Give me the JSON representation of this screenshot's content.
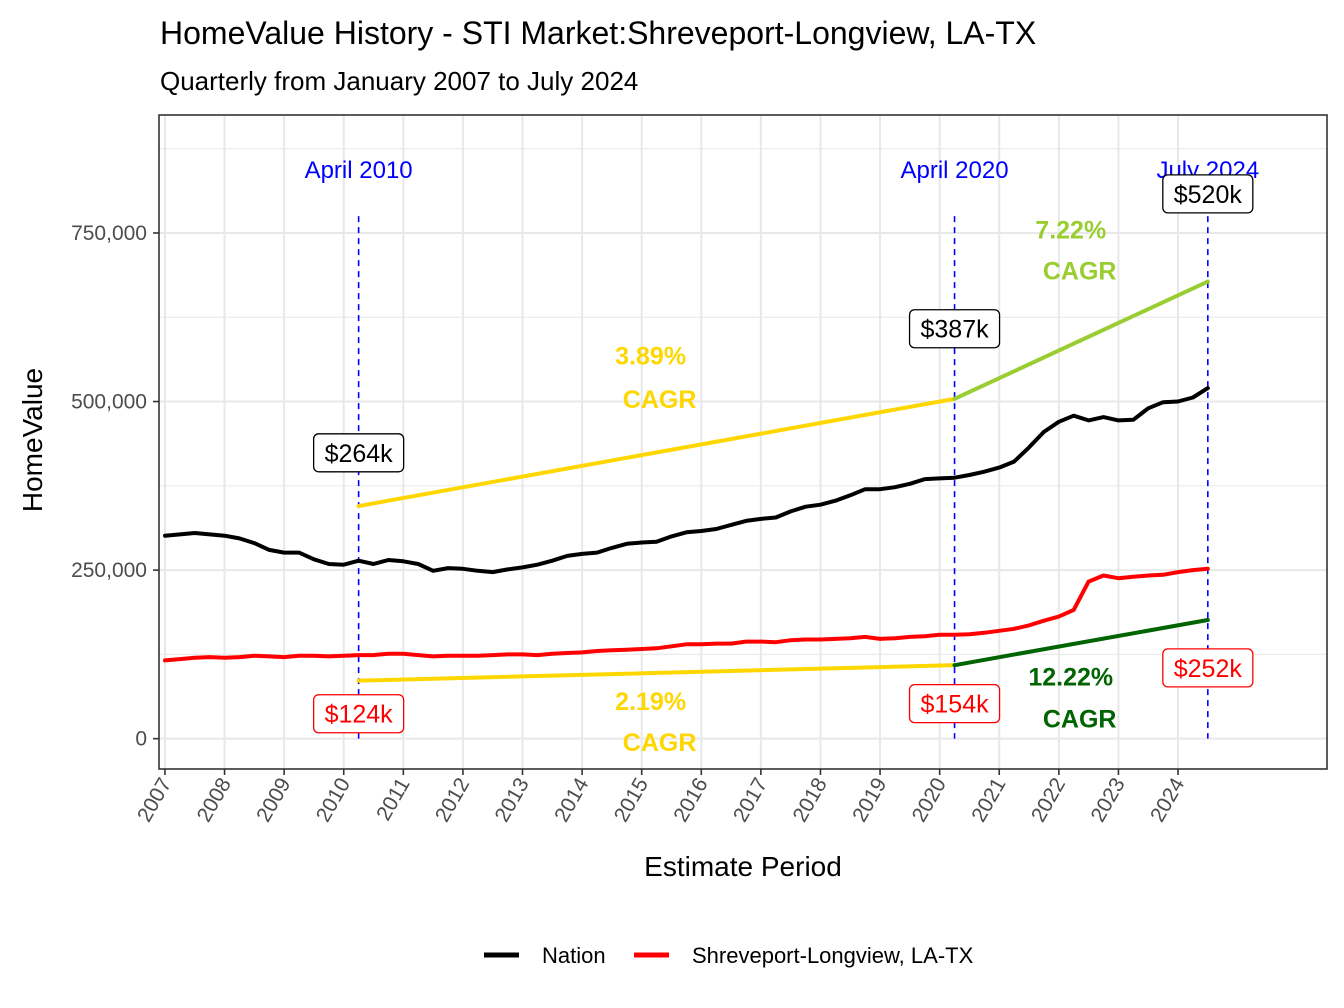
{
  "chart_data": {
    "type": "line",
    "title": "HomeValue History - STI Market:Shreveport-Longview, LA-TX",
    "subtitle": "Quarterly from January 2007 to July 2024",
    "xlabel": "Estimate Period",
    "ylabel": "HomeValue",
    "xlim": [
      2006.9,
      2026.5
    ],
    "ylim": [
      -45000,
      925000
    ],
    "x_ticks": [
      2007,
      2008,
      2009,
      2010,
      2011,
      2012,
      2013,
      2014,
      2015,
      2016,
      2017,
      2018,
      2019,
      2020,
      2021,
      2022,
      2023,
      2024
    ],
    "x_tick_labels": [
      "2007",
      "2008",
      "2009",
      "2010",
      "2011",
      "2012",
      "2013",
      "2014",
      "2015",
      "2016",
      "2017",
      "2018",
      "2019",
      "2020",
      "2021",
      "2022",
      "2023",
      "2024"
    ],
    "y_ticks": [
      0,
      250000,
      500000,
      750000
    ],
    "y_tick_labels": [
      "0",
      "250,000",
      "500,000",
      "750,000"
    ],
    "grid": true,
    "legend_position": "bottom",
    "series": [
      {
        "name": "Nation",
        "color": "#000000",
        "x": [
          2007.0,
          2007.25,
          2007.5,
          2007.75,
          2008.0,
          2008.25,
          2008.5,
          2008.75,
          2009.0,
          2009.25,
          2009.5,
          2009.75,
          2010.0,
          2010.25,
          2010.5,
          2010.75,
          2011.0,
          2011.25,
          2011.5,
          2011.75,
          2012.0,
          2012.25,
          2012.5,
          2012.75,
          2013.0,
          2013.25,
          2013.5,
          2013.75,
          2014.0,
          2014.25,
          2014.5,
          2014.75,
          2015.0,
          2015.25,
          2015.5,
          2015.75,
          2016.0,
          2016.25,
          2016.5,
          2016.75,
          2017.0,
          2017.25,
          2017.5,
          2017.75,
          2018.0,
          2018.25,
          2018.5,
          2018.75,
          2019.0,
          2019.25,
          2019.5,
          2019.75,
          2020.0,
          2020.25,
          2020.5,
          2020.75,
          2021.0,
          2021.25,
          2021.5,
          2021.75,
          2022.0,
          2022.25,
          2022.5,
          2022.75,
          2023.0,
          2023.25,
          2023.5,
          2023.75,
          2024.0,
          2024.25,
          2024.5
        ],
        "values": [
          301000,
          303000,
          305000,
          303000,
          301000,
          297000,
          290000,
          280000,
          276000,
          276000,
          266000,
          259000,
          258000,
          264000,
          259000,
          265000,
          263000,
          259000,
          249000,
          253000,
          252000,
          249000,
          247000,
          251000,
          254000,
          258000,
          264000,
          271000,
          274000,
          276000,
          283000,
          289000,
          291000,
          292000,
          300000,
          306000,
          308000,
          311000,
          317000,
          323000,
          326000,
          328000,
          337000,
          344000,
          347000,
          353000,
          361000,
          370000,
          370000,
          373000,
          378000,
          385000,
          386000,
          387000,
          391000,
          396000,
          402000,
          411000,
          432000,
          455000,
          470000,
          479000,
          472000,
          477000,
          472000,
          473000,
          490000,
          499000,
          500000,
          506000,
          520000
        ]
      },
      {
        "name": "Shreveport-Longview, LA-TX",
        "color": "#ff0000",
        "x": [
          2007.0,
          2007.25,
          2007.5,
          2007.75,
          2008.0,
          2008.25,
          2008.5,
          2008.75,
          2009.0,
          2009.25,
          2009.5,
          2009.75,
          2010.0,
          2010.25,
          2010.5,
          2010.75,
          2011.0,
          2011.25,
          2011.5,
          2011.75,
          2012.0,
          2012.25,
          2012.5,
          2012.75,
          2013.0,
          2013.25,
          2013.5,
          2013.75,
          2014.0,
          2014.25,
          2014.5,
          2014.75,
          2015.0,
          2015.25,
          2015.5,
          2015.75,
          2016.0,
          2016.25,
          2016.5,
          2016.75,
          2017.0,
          2017.25,
          2017.5,
          2017.75,
          2018.0,
          2018.25,
          2018.5,
          2018.75,
          2019.0,
          2019.25,
          2019.5,
          2019.75,
          2020.0,
          2020.25,
          2020.5,
          2020.75,
          2021.0,
          2021.25,
          2021.5,
          2021.75,
          2022.0,
          2022.25,
          2022.5,
          2022.75,
          2023.0,
          2023.25,
          2023.5,
          2023.75,
          2024.0,
          2024.25,
          2024.5
        ],
        "values": [
          116000,
          118000,
          120000,
          121000,
          120000,
          121000,
          123000,
          122000,
          121000,
          123000,
          123000,
          122000,
          123000,
          124000,
          124000,
          126000,
          126000,
          124000,
          122000,
          123000,
          123000,
          123000,
          124000,
          125000,
          125000,
          124000,
          126000,
          127000,
          128000,
          130000,
          131000,
          132000,
          133000,
          134000,
          137000,
          140000,
          140000,
          141000,
          141000,
          144000,
          144000,
          143000,
          146000,
          147000,
          147000,
          148000,
          149000,
          151000,
          148000,
          149000,
          151000,
          152000,
          154000,
          154000,
          155000,
          157000,
          160000,
          163000,
          168000,
          175000,
          181000,
          191000,
          233000,
          242000,
          238000,
          240000,
          242000,
          243000,
          247000,
          250000,
          252000
        ]
      }
    ],
    "trend_lines": [
      {
        "name": "Nation 2010-2020 trend",
        "color": "#ffd700",
        "x": [
          2010.25,
          2020.25
        ],
        "y": [
          345000,
          504000
        ]
      },
      {
        "name": "Nation 2020-2024 trend",
        "color": "#9acd32",
        "x": [
          2020.25,
          2024.5
        ],
        "y": [
          504000,
          678000
        ]
      },
      {
        "name": "Shreveport 2010-2020 trend",
        "color": "#ffd700",
        "x": [
          2010.25,
          2020.25
        ],
        "y": [
          86000,
          109000
        ]
      },
      {
        "name": "Shreveport 2020-2024 trend",
        "color": "#006400",
        "x": [
          2020.25,
          2024.5
        ],
        "y": [
          109000,
          176000
        ]
      }
    ],
    "vlines": [
      {
        "x": 2010.25,
        "label": "April 2010"
      },
      {
        "x": 2020.25,
        "label": "April 2020"
      },
      {
        "x": 2024.5,
        "label": "July 2024"
      }
    ],
    "annotations": [
      {
        "text": "$264k",
        "x": 2010.25,
        "y": 424000,
        "kind": "box",
        "color": "#000000"
      },
      {
        "text": "$387k",
        "x": 2020.25,
        "y": 608000,
        "kind": "box",
        "color": "#000000"
      },
      {
        "text": "$520k",
        "x": 2024.5,
        "y": 808000,
        "kind": "box",
        "color": "#000000"
      },
      {
        "text": "$124k",
        "x": 2010.25,
        "y": 37000,
        "kind": "box",
        "color": "#ff0000"
      },
      {
        "text": "$154k",
        "x": 2020.25,
        "y": 52000,
        "kind": "box",
        "color": "#ff0000"
      },
      {
        "text": "$252k",
        "x": 2024.5,
        "y": 105000,
        "kind": "box",
        "color": "#ff0000"
      },
      {
        "text": "3.89%",
        "x": 2015.15,
        "y": 568000,
        "kind": "text",
        "color": "#ffd700"
      },
      {
        "text": "CAGR",
        "x": 2015.3,
        "y": 504000,
        "kind": "text",
        "color": "#ffd700"
      },
      {
        "text": "2.19%",
        "x": 2015.15,
        "y": 56000,
        "kind": "text",
        "color": "#ffd700"
      },
      {
        "text": "CAGR",
        "x": 2015.3,
        "y": -5000,
        "kind": "text",
        "color": "#ffd700"
      },
      {
        "text": "7.22%",
        "x": 2022.2,
        "y": 755000,
        "kind": "text",
        "color": "#9acd32"
      },
      {
        "text": "CAGR",
        "x": 2022.35,
        "y": 694000,
        "kind": "text",
        "color": "#9acd32"
      },
      {
        "text": "12.22%",
        "x": 2022.2,
        "y": 92000,
        "kind": "text",
        "color": "#006400"
      },
      {
        "text": "CAGR",
        "x": 2022.35,
        "y": 30000,
        "kind": "text",
        "color": "#006400"
      }
    ]
  }
}
